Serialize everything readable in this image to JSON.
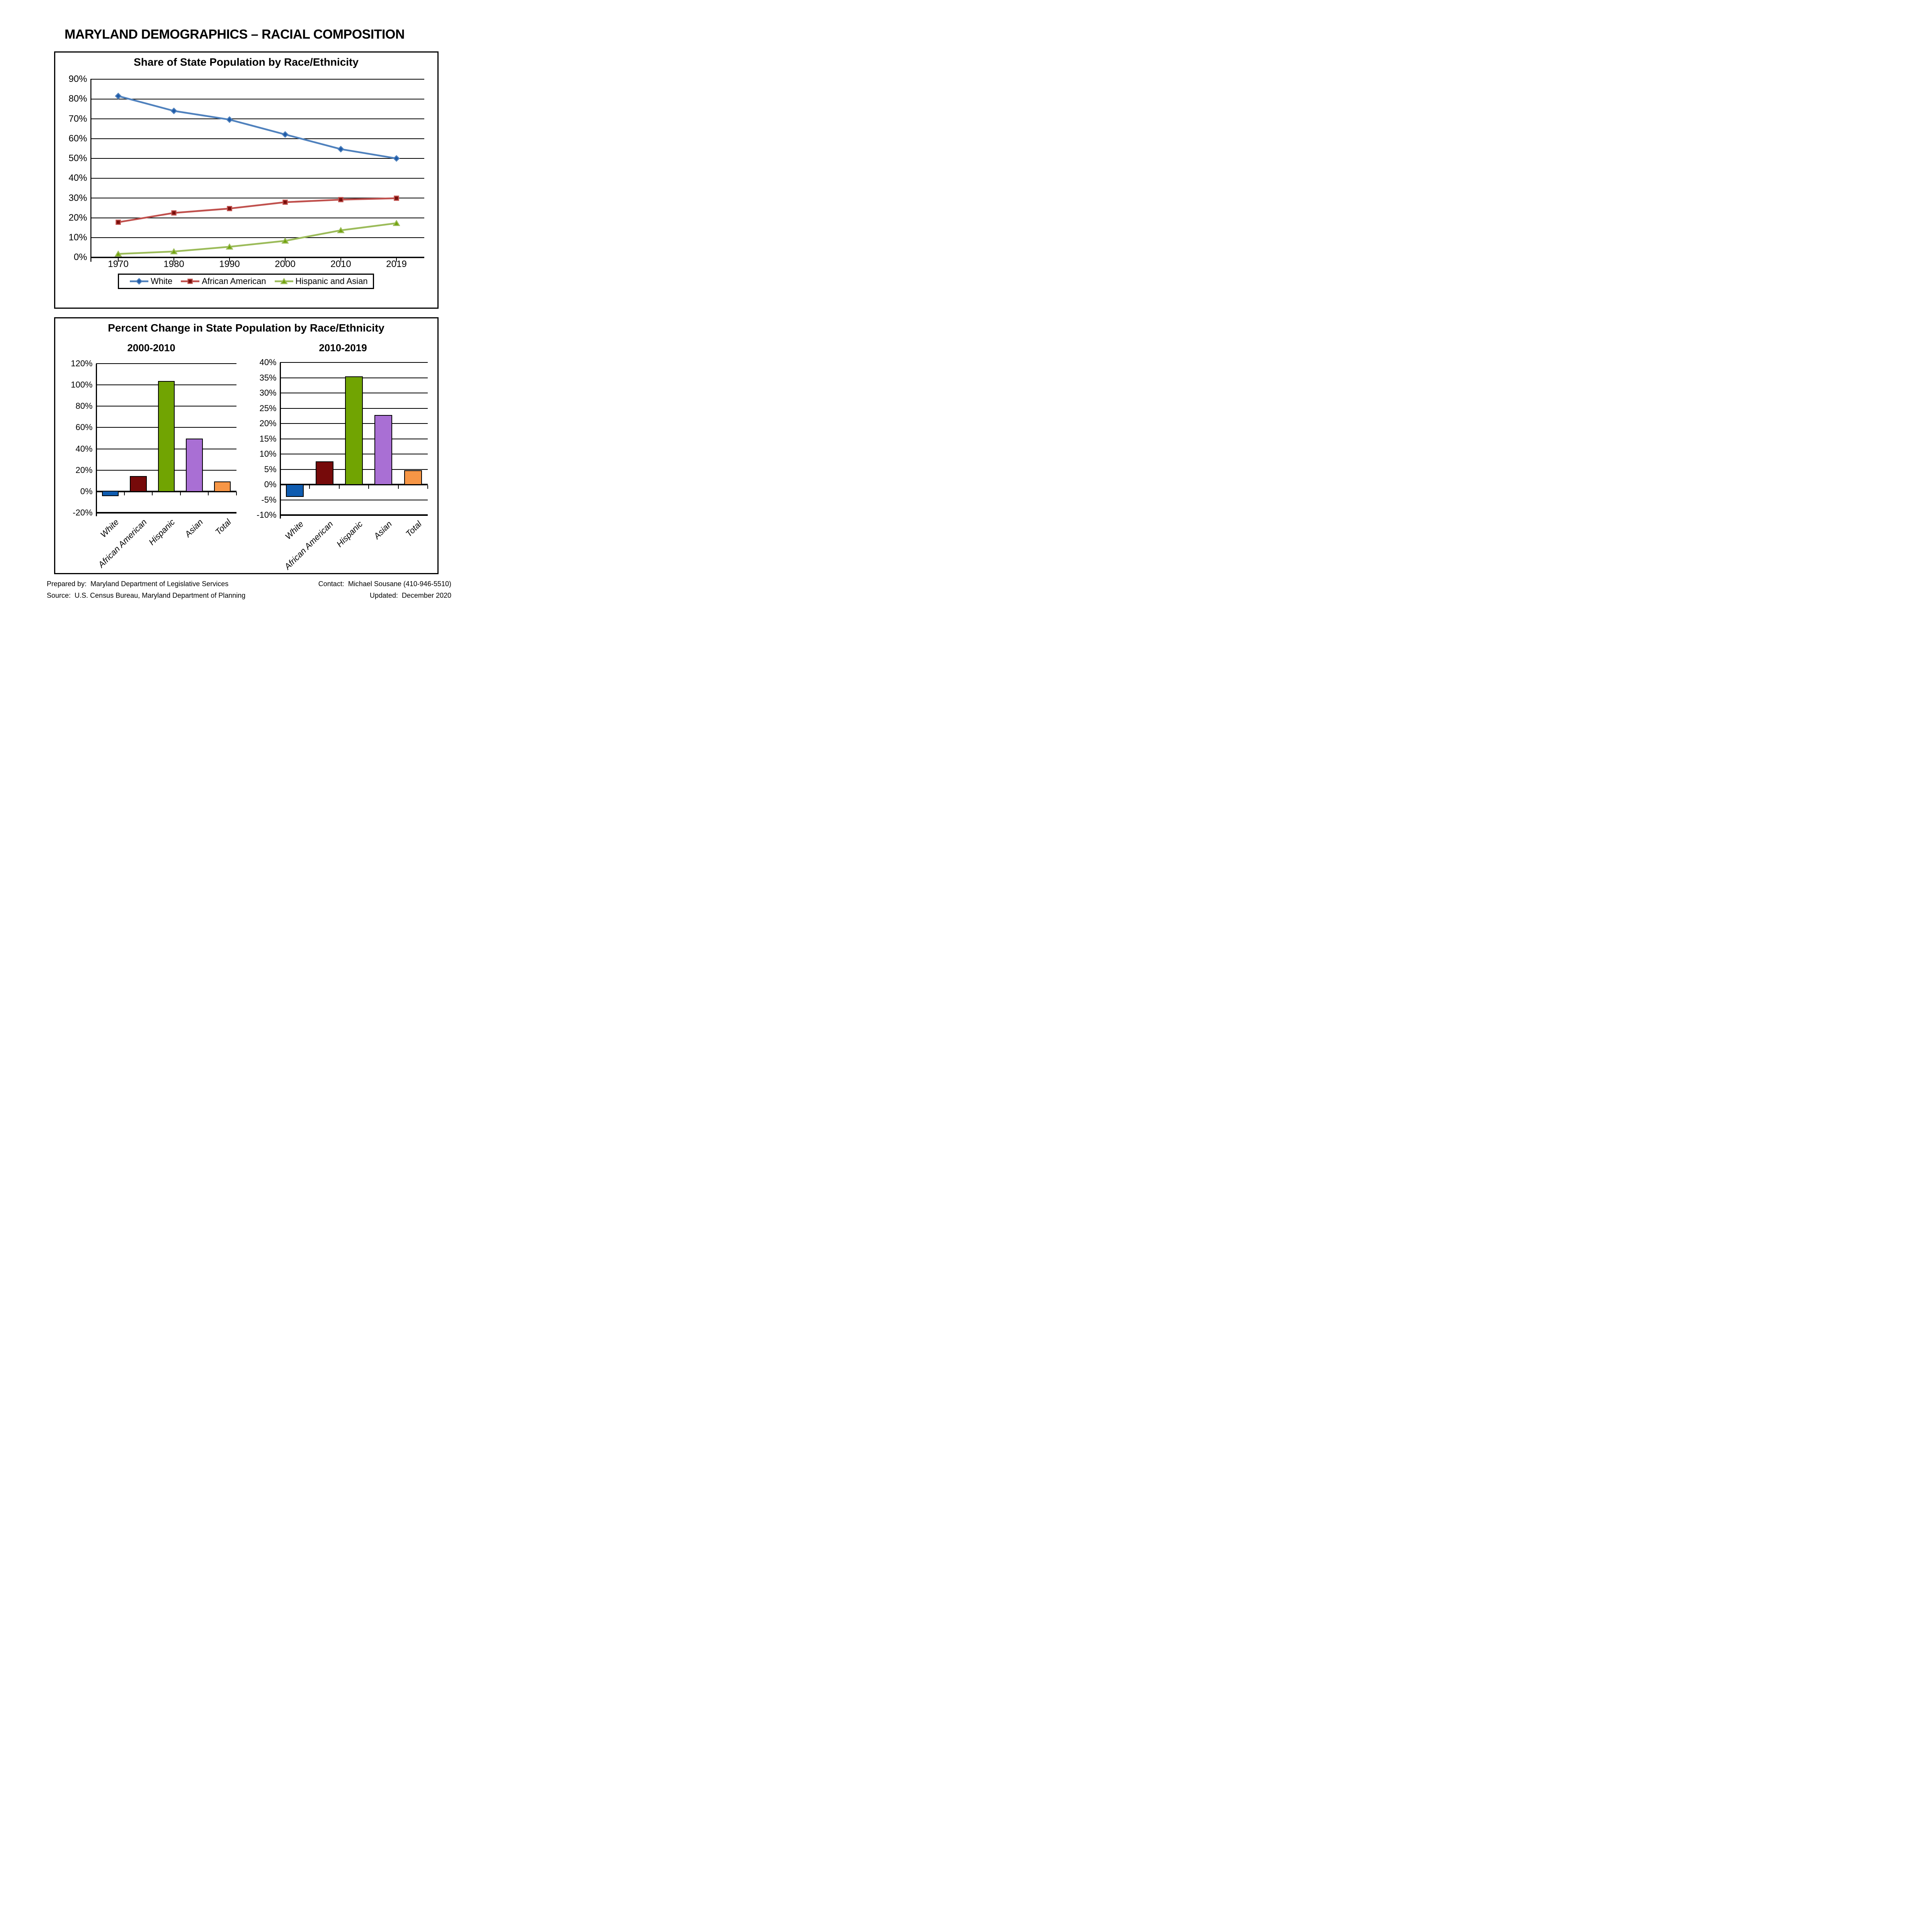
{
  "page": {
    "title": "MARYLAND DEMOGRAPHICS – RACIAL COMPOSITION"
  },
  "chart_data": [
    {
      "type": "line",
      "title": "Share of State Population by Race/Ethnicity",
      "categories": [
        "1970",
        "1980",
        "1990",
        "2000",
        "2010",
        "2019"
      ],
      "ylim": [
        0,
        90
      ],
      "ytick_step": 10,
      "ytick_labels": [
        "90%",
        "80%",
        "70%",
        "60%",
        "50%",
        "40%",
        "30%",
        "20%",
        "10%",
        "0%"
      ],
      "grid": true,
      "legend_position": "bottom",
      "series": [
        {
          "name": "White",
          "marker": "diamond",
          "line_color": "#4F81BD",
          "marker_color": "#1F5BA8",
          "values": [
            81.5,
            74.0,
            69.6,
            62.1,
            54.7,
            50.0
          ]
        },
        {
          "name": "African American",
          "marker": "square",
          "line_color": "#C0504D",
          "marker_color": "#7A0F0B",
          "values": [
            17.8,
            22.5,
            24.7,
            27.9,
            29.2,
            29.9
          ]
        },
        {
          "name": "Hispanic and Asian",
          "marker": "triangle",
          "line_color": "#9BBB59",
          "marker_color": "#71A40A",
          "values": [
            1.8,
            3.0,
            5.4,
            8.4,
            13.7,
            17.3
          ]
        }
      ]
    },
    {
      "type": "bar",
      "panel_title": "Percent Change in State Population by Race/Ethnicity",
      "title": "2000-2010",
      "categories": [
        "White",
        "African American",
        "Hispanic",
        "Asian",
        "Total"
      ],
      "values": [
        -4.4,
        14.5,
        103.5,
        49.5,
        9.3
      ],
      "colors": [
        "#0F5CB0",
        "#760A0A",
        "#71A402",
        "#A96FD4",
        "#F79646"
      ],
      "ylim": [
        -20,
        120
      ],
      "ytick_step": 20,
      "grid": true
    },
    {
      "type": "bar",
      "title": "2010-2019",
      "categories": [
        "White",
        "African American",
        "Hispanic",
        "Asian",
        "Total"
      ],
      "values": [
        -4.0,
        7.6,
        35.4,
        22.8,
        4.7
      ],
      "colors": [
        "#0F5CB0",
        "#760A0A",
        "#71A402",
        "#A96FD4",
        "#F79646"
      ],
      "ylim": [
        -10,
        40
      ],
      "ytick_step": 5,
      "grid": true
    }
  ],
  "footer": {
    "prepared_by": "Prepared by:  Maryland Department of Legislative Services",
    "contact": "Contact:  Michael Sousane (410-946-5510)",
    "source": "Source:  U.S. Census Bureau, Maryland Department of Planning",
    "updated": "Updated:  December 2020"
  }
}
